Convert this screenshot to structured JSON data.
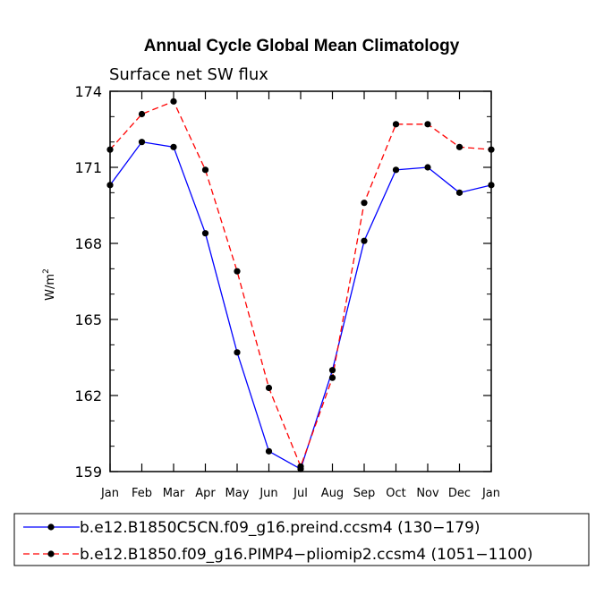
{
  "chart_data": {
    "type": "line",
    "title": "Annual Cycle Global Mean Climatology",
    "subtitle": "Surface net SW flux",
    "xlabel": "",
    "ylabel": "W/m",
    "ylabel_superscript": "2",
    "categories": [
      "Jan",
      "Feb",
      "Mar",
      "Apr",
      "May",
      "Jun",
      "Jul",
      "Aug",
      "Sep",
      "Oct",
      "Nov",
      "Dec",
      "Jan"
    ],
    "ylim": [
      159,
      174
    ],
    "yticks": [
      159,
      162,
      165,
      168,
      171,
      174
    ],
    "series": [
      {
        "name": "b.e12.B1850C5CN.f09_g16.preind.ccsm4 (130−179)",
        "color": "#0000ff",
        "dash": "solid",
        "values": [
          170.3,
          172.0,
          171.8,
          168.4,
          163.7,
          159.8,
          159.1,
          163.0,
          168.1,
          170.9,
          171.0,
          170.0,
          170.3
        ]
      },
      {
        "name": "b.e12.B1850.f09_g16.PIMP4−pliomip2.ccsm4 (1051−1100)",
        "color": "#ff0000",
        "dash": "dashed",
        "values": [
          171.7,
          173.1,
          173.6,
          170.9,
          166.9,
          162.3,
          159.2,
          162.7,
          169.6,
          172.7,
          172.7,
          171.8,
          171.7
        ]
      }
    ]
  }
}
